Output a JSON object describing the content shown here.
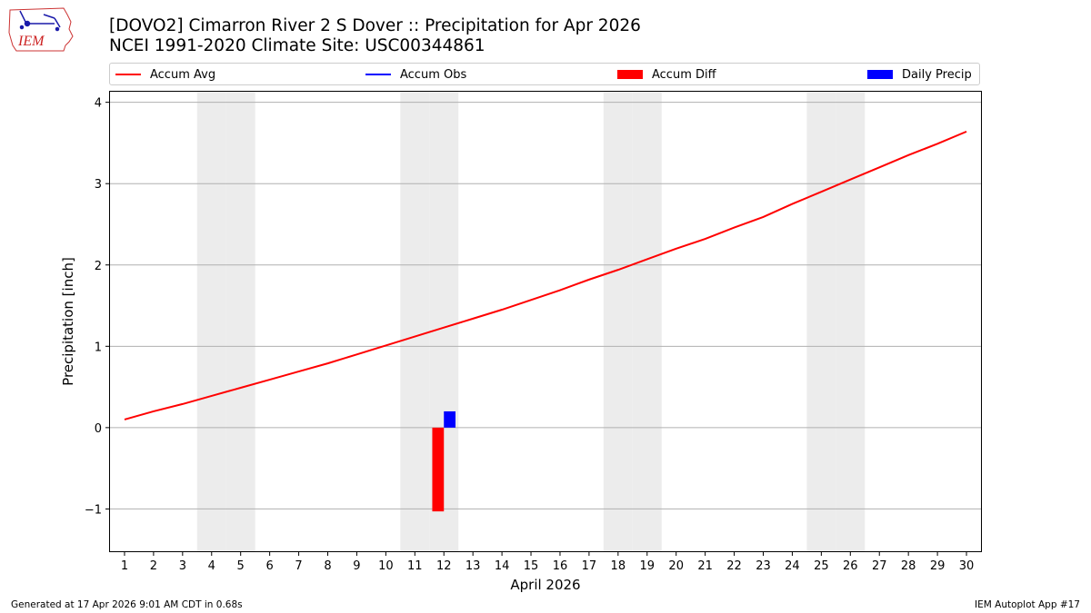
{
  "header": {
    "title_line1": "[DOVO2] Cimarron River 2 S Dover :: Precipitation for Apr 2026",
    "title_line2": "NCEI 1991-2020 Climate Site: USC00344861",
    "logo_text": "IEM"
  },
  "legend": {
    "accum_avg": "Accum Avg",
    "accum_obs": "Accum Obs",
    "accum_diff": "Accum Diff",
    "daily_precip": "Daily Precip"
  },
  "colors": {
    "accum_avg": "#ff0000",
    "accum_obs": "#0000ff",
    "accum_diff": "#ff0000",
    "daily_precip": "#0000ff",
    "weekend_shade": "#ececec",
    "grid": "#b0b0b0"
  },
  "footer": {
    "generated": "Generated at 17 Apr 2026 9:01 AM CDT in 0.68s",
    "app": "IEM Autoplot App #17"
  },
  "chart_data": {
    "type": "line",
    "title": "[DOVO2] Cimarron River 2 S Dover :: Precipitation for Apr 2026",
    "xlabel": "April 2026",
    "ylabel": "Precipitation [inch]",
    "xlim": [
      0.5,
      30.5
    ],
    "ylim": [
      -1.52,
      4.13
    ],
    "x_ticks": [
      1,
      2,
      3,
      4,
      5,
      6,
      7,
      8,
      9,
      10,
      11,
      12,
      13,
      14,
      15,
      16,
      17,
      18,
      19,
      20,
      21,
      22,
      23,
      24,
      25,
      26,
      27,
      28,
      29,
      30
    ],
    "y_ticks": [
      -1,
      0,
      1,
      2,
      3,
      4
    ],
    "y_tick_labels": [
      "−1",
      "0",
      "1",
      "2",
      "3",
      "4"
    ],
    "grid": "horizontal",
    "weekend_days": [
      4,
      5,
      11,
      12,
      18,
      19,
      25,
      26
    ],
    "series": [
      {
        "name": "Accum Avg",
        "kind": "line",
        "x": [
          1,
          2,
          3,
          4,
          5,
          6,
          7,
          8,
          9,
          10,
          11,
          12,
          13,
          14,
          15,
          16,
          17,
          18,
          19,
          20,
          21,
          22,
          23,
          24,
          25,
          26,
          27,
          28,
          29,
          30
        ],
        "values": [
          0.1,
          0.2,
          0.29,
          0.39,
          0.49,
          0.59,
          0.69,
          0.79,
          0.9,
          1.01,
          1.12,
          1.23,
          1.34,
          1.45,
          1.57,
          1.69,
          1.82,
          1.94,
          2.07,
          2.2,
          2.32,
          2.46,
          2.59,
          2.75,
          2.9,
          3.05,
          3.2,
          3.35,
          3.49,
          3.64
        ]
      },
      {
        "name": "Accum Obs",
        "kind": "line",
        "x": [],
        "values": []
      },
      {
        "name": "Accum Diff",
        "kind": "bar",
        "x": [
          12
        ],
        "values": [
          -1.03
        ]
      },
      {
        "name": "Daily Precip",
        "kind": "bar",
        "x": [
          12
        ],
        "values": [
          0.2
        ]
      }
    ]
  }
}
